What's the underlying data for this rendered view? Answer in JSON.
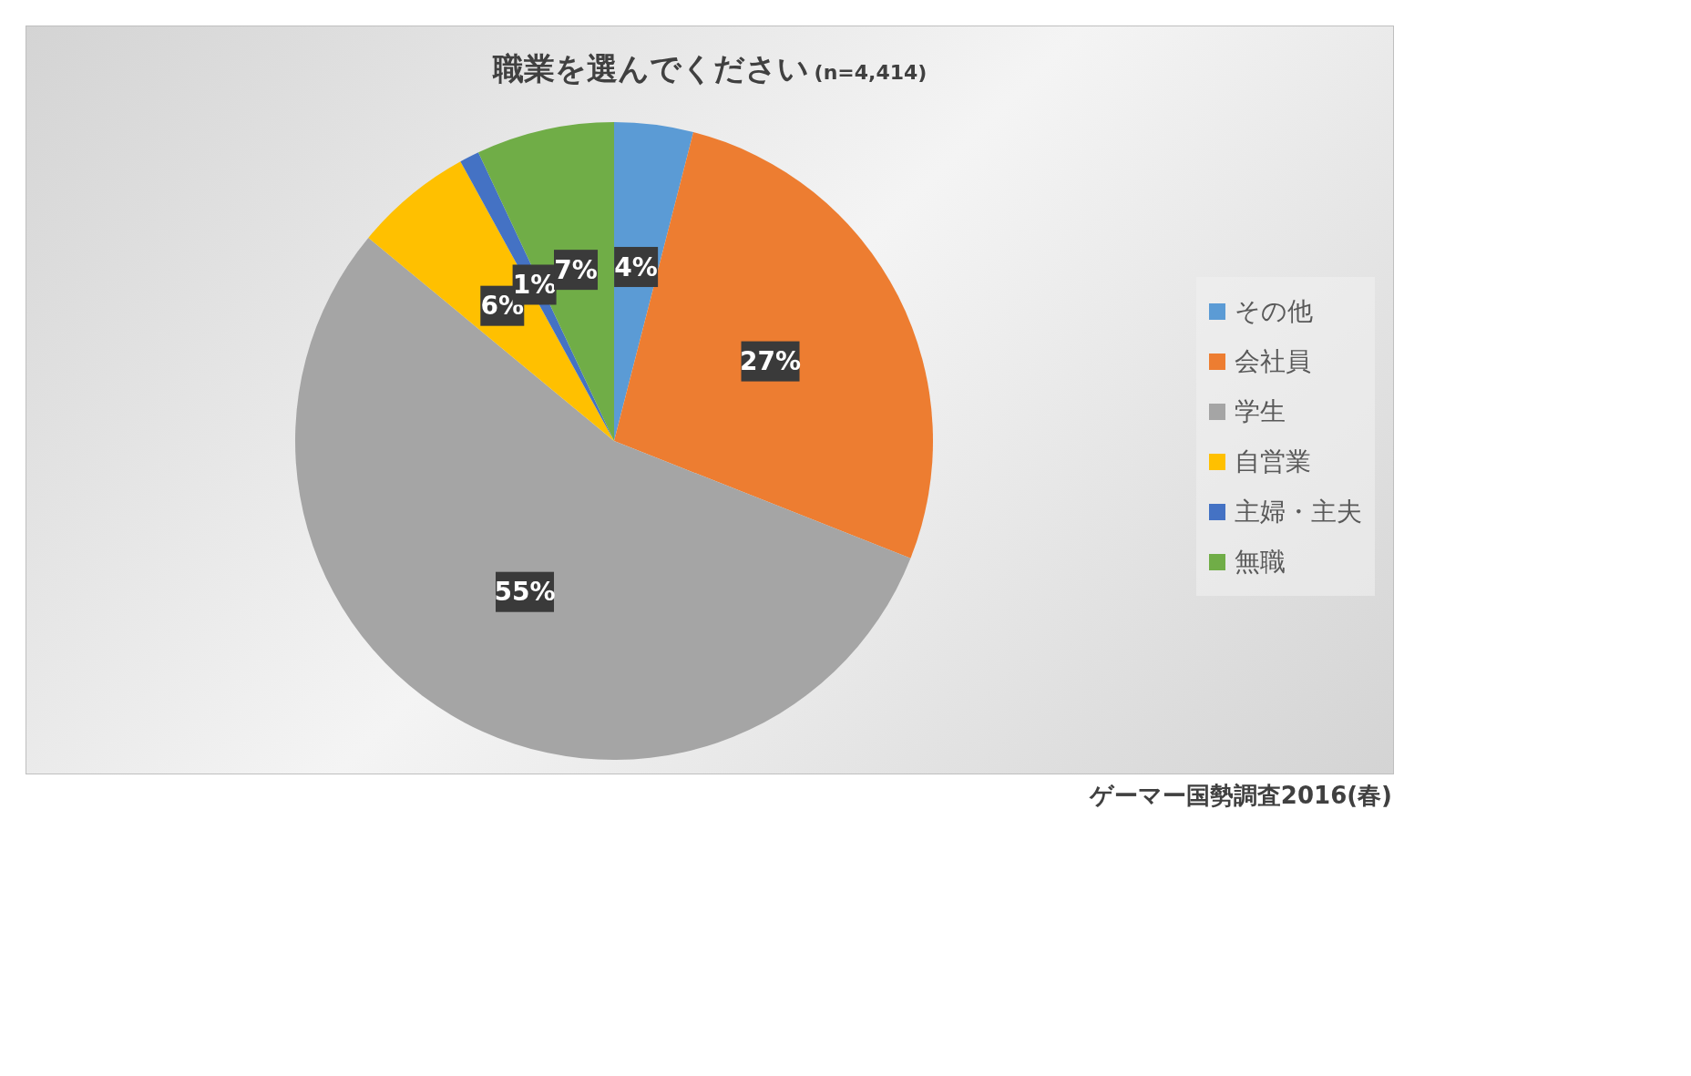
{
  "chart_data": {
    "type": "pie",
    "title": "職業を選んでください",
    "subtitle": "(n=4,414)",
    "categories": [
      "その他",
      "会社員",
      "学生",
      "自営業",
      "主婦・主夫",
      "無職"
    ],
    "values": [
      4,
      27,
      55,
      6,
      1,
      7
    ],
    "value_labels": [
      "4%",
      "27%",
      "55%",
      "6%",
      "1%",
      "7%"
    ],
    "colors": [
      "#5b9bd5",
      "#ed7d31",
      "#a5a5a5",
      "#ffc000",
      "#4472c4",
      "#70ad47"
    ],
    "legend": "right",
    "annotations": [
      "ゲーマー国勢調査2016(春)"
    ]
  }
}
